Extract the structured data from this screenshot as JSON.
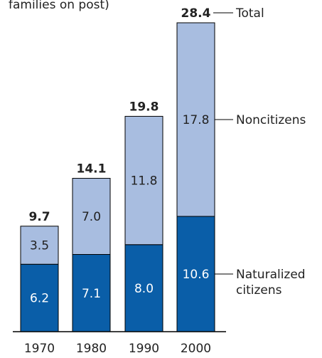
{
  "chart_data": {
    "type": "bar",
    "stacked": true,
    "title_fragment": "families on post)",
    "categories": [
      "1970",
      "1980",
      "1990",
      "2000"
    ],
    "series": [
      {
        "name": "Naturalized citizens",
        "values": [
          6.2,
          7.1,
          8.0,
          10.6
        ]
      },
      {
        "name": "Noncitizens",
        "values": [
          3.5,
          7.0,
          11.8,
          17.8
        ]
      }
    ],
    "totals": [
      9.7,
      14.1,
      19.8,
      28.4
    ],
    "legend": {
      "total": "Total",
      "noncitizens": "Noncitizens",
      "naturalized_line1": "Naturalized",
      "naturalized_line2": "citizens"
    },
    "ylim": [
      0,
      28.4
    ],
    "grid": false,
    "colors": {
      "naturalized": "#0a5ea8",
      "noncitizens": "#a8bde0",
      "outline": "#000000",
      "text_light": "#ffffff",
      "text_dark": "#222222"
    }
  }
}
